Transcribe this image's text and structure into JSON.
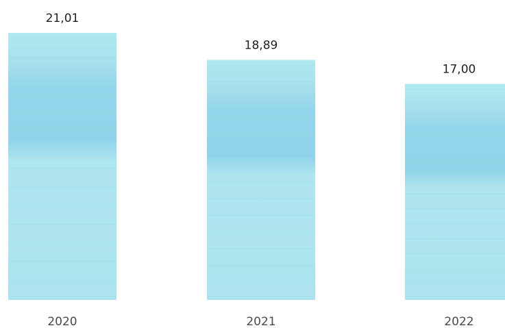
{
  "chart_data": {
    "type": "bar",
    "categories": [
      "2020",
      "2021",
      "2022"
    ],
    "values": [
      21.01,
      18.89,
      17.0
    ],
    "data_labels": [
      "21,01",
      "18,89",
      "17,00"
    ],
    "title": "",
    "xlabel": "",
    "ylabel": "",
    "ylim": [
      0,
      21.01
    ],
    "grid": false,
    "legend": "none",
    "colors": {
      "bar_light": "#b2e9ef",
      "bar_mid": "#a6dfec",
      "bar_band": "#8fd3ea"
    }
  }
}
